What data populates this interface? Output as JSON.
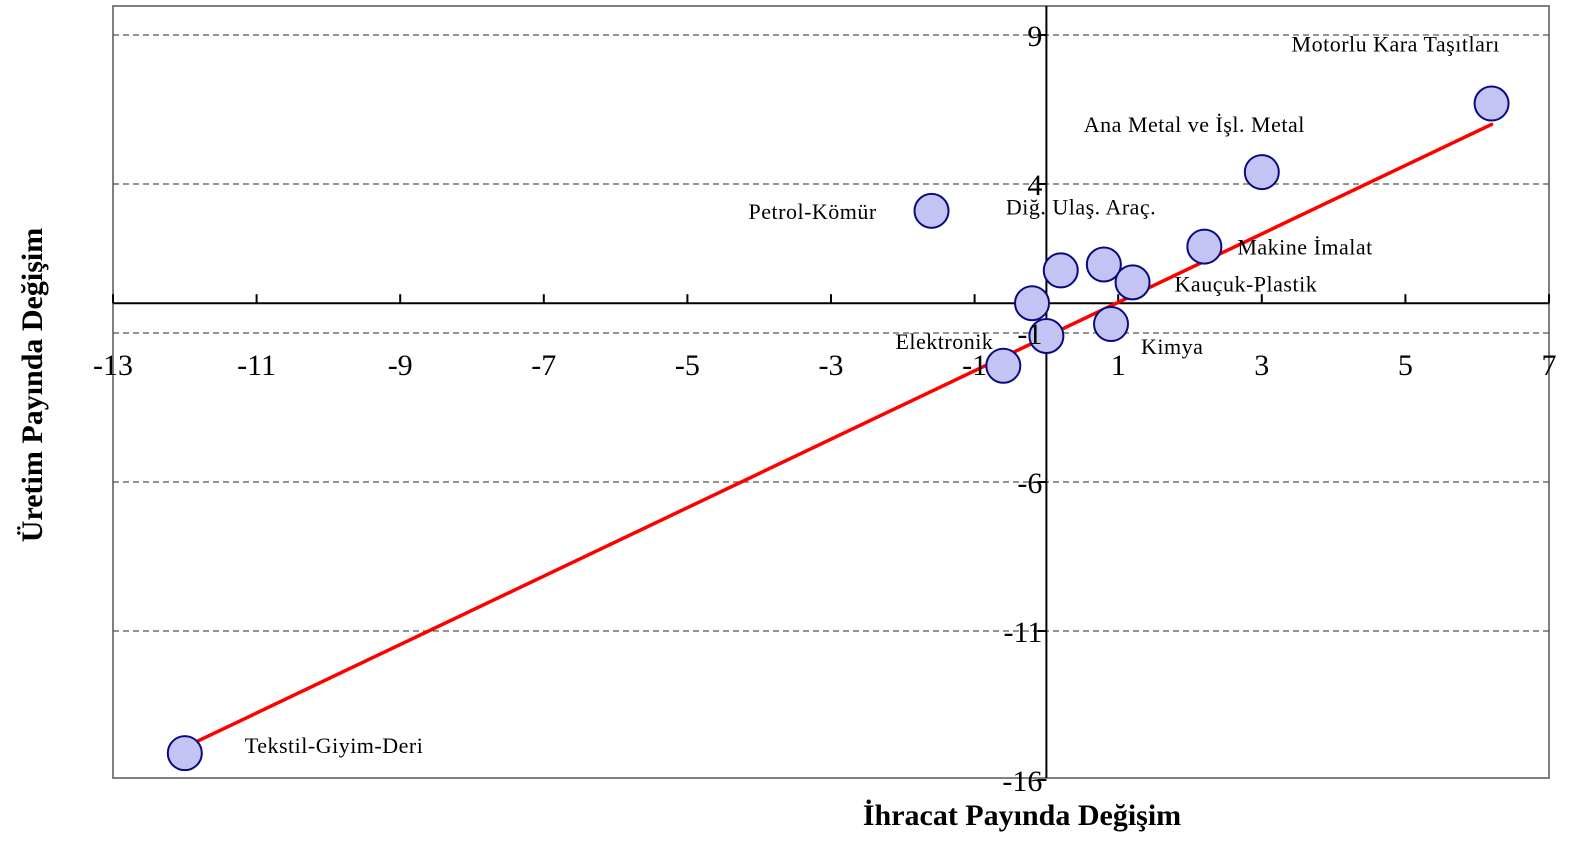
{
  "chart_data": {
    "type": "scatter",
    "title": "",
    "xlabel": "İhracat Payında Değişim",
    "ylabel": "Üretim Payında Değişim",
    "xlim": [
      -13,
      7
    ],
    "ylim": [
      -16,
      10
    ],
    "x_ticks": [
      -13,
      -11,
      -9,
      -7,
      -5,
      -3,
      -1,
      1,
      3,
      5,
      7
    ],
    "y_ticks": [
      9,
      4,
      -1,
      -6,
      -11,
      -16
    ],
    "grid": "horizontal dashed",
    "legend": "none",
    "colors": {
      "point_fill": "#c4c4f4",
      "point_stroke": "#0a0a80",
      "trendline": "#ff0000",
      "grid": "#555555",
      "axis": "#000000",
      "frame": "#808080"
    },
    "points": [
      {
        "label": "Motorlu Kara Taşıtları",
        "x": 6.2,
        "y": 6.7
      },
      {
        "label": "Ana Metal ve İşl. Metal",
        "x": 3.0,
        "y": 4.4
      },
      {
        "label": "Petrol-Kömür",
        "x": -1.6,
        "y": 3.1
      },
      {
        "label": "Diğ. Ulaş. Araç.",
        "x": 0.8,
        "y": 1.3
      },
      {
        "label": "Makine İmalat",
        "x": 2.2,
        "y": 1.9
      },
      {
        "label": "Kauçuk-Plastik",
        "x": 1.2,
        "y": 0.7
      },
      {
        "label": "",
        "x": 0.2,
        "y": 1.1
      },
      {
        "label": "",
        "x": -0.2,
        "y": 0.0
      },
      {
        "label": "Kimya",
        "x": 0.9,
        "y": -0.7
      },
      {
        "label": "",
        "x": 0.0,
        "y": -1.1
      },
      {
        "label": "Elektronik",
        "x": -0.6,
        "y": -2.1
      },
      {
        "label": "Tekstil-Giyim-Deri",
        "x": -12.0,
        "y": -15.1
      }
    ],
    "trendline": {
      "type": "linear",
      "x_range": [
        -12.0,
        6.2
      ],
      "y_range": [
        -14.9,
        6.0
      ]
    }
  }
}
